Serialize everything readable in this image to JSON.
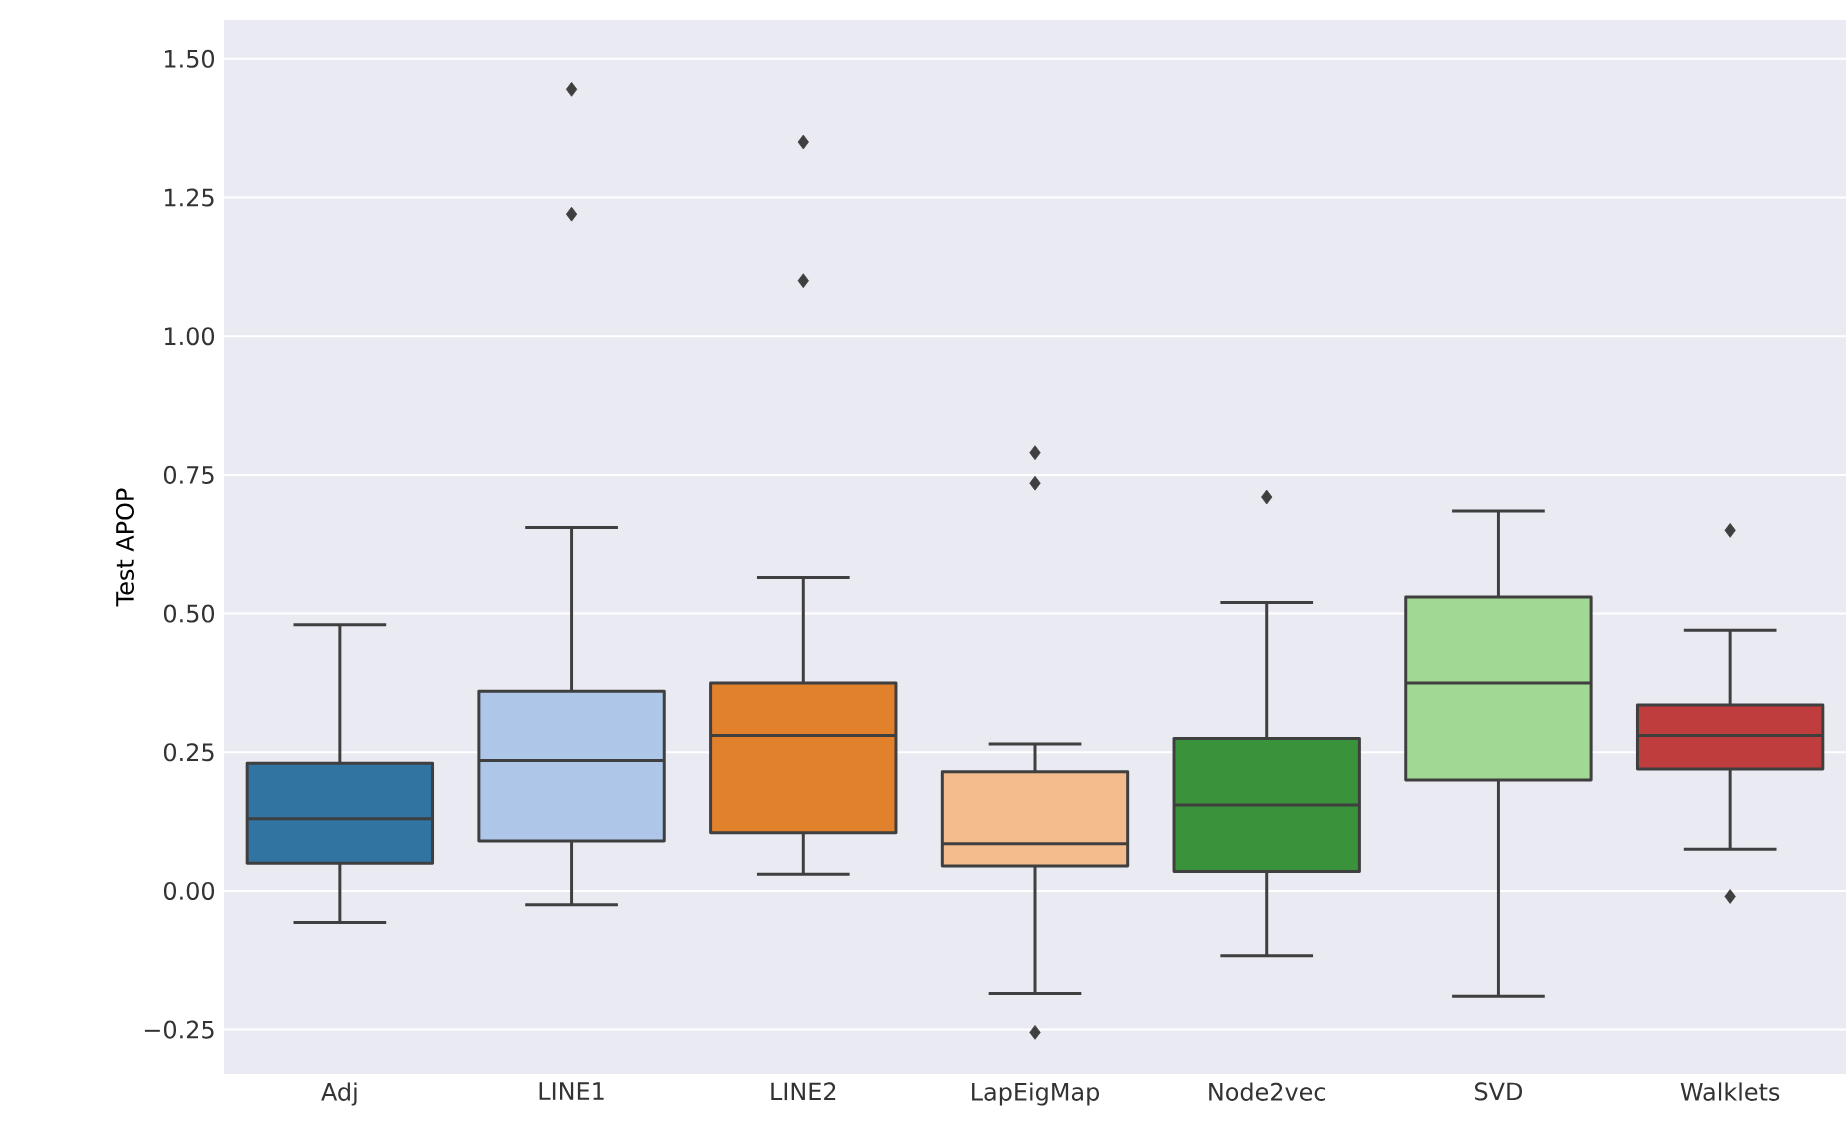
{
  "chart_data": {
    "type": "box",
    "ylabel": "Test APOP",
    "categories": [
      "Adj",
      "LINE1",
      "LINE2",
      "LapEigMap",
      "Node2vec",
      "SVD",
      "Walklets"
    ],
    "boxes": [
      {
        "low": -0.057,
        "q1": 0.05,
        "median": 0.13,
        "q3": 0.23,
        "high": 0.48
      },
      {
        "low": -0.025,
        "q1": 0.09,
        "median": 0.235,
        "q3": 0.36,
        "high": 0.655,
        "outliers": [
          1.22,
          1.445
        ]
      },
      {
        "low": 0.03,
        "q1": 0.105,
        "median": 0.28,
        "q3": 0.375,
        "high": 0.565,
        "outliers": [
          1.1,
          1.35
        ]
      },
      {
        "low": -0.185,
        "q1": 0.045,
        "median": 0.085,
        "q3": 0.215,
        "high": 0.265,
        "outliers": [
          -0.255,
          0.735,
          0.79
        ]
      },
      {
        "low": -0.117,
        "q1": 0.035,
        "median": 0.155,
        "q3": 0.275,
        "high": 0.52,
        "outliers": [
          0.71
        ]
      },
      {
        "low": -0.19,
        "q1": 0.2,
        "median": 0.375,
        "q3": 0.53,
        "high": 0.685
      },
      {
        "low": 0.075,
        "q1": 0.22,
        "median": 0.28,
        "q3": 0.335,
        "high": 0.47,
        "outliers": [
          -0.01,
          0.65
        ]
      }
    ],
    "colors": [
      "#3274a1",
      "#aec7e8",
      "#e1812c",
      "#f2bc8c",
      "#3a923a",
      "#a1d994",
      "#c03d3e"
    ],
    "ylim": [
      -0.33,
      1.57
    ],
    "yticks": [
      {
        "value": -0.25,
        "label": "−0.25"
      },
      {
        "value": 0,
        "label": "0.00"
      },
      {
        "value": 0.25,
        "label": "0.25"
      },
      {
        "value": 0.5,
        "label": "0.50"
      },
      {
        "value": 0.75,
        "label": "0.75"
      },
      {
        "value": 1,
        "label": "1.00"
      },
      {
        "value": 1.25,
        "label": "1.25"
      },
      {
        "value": 1.5,
        "label": "1.50"
      }
    ],
    "grid": "y",
    "marker": "diamond"
  }
}
